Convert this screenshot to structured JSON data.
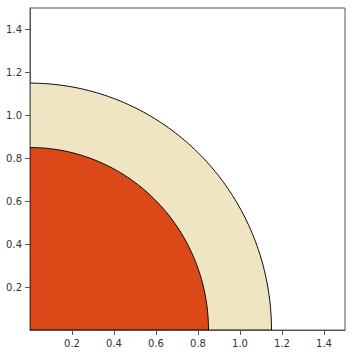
{
  "chart_data": {
    "type": "quarter_sphere",
    "series": [
      {
        "radius": 1.15,
        "color": "#efe4bf"
      },
      {
        "radius": 0.85,
        "color": "#d9400f"
      }
    ],
    "xlim": [
      0,
      1.5
    ],
    "ylim": [
      0,
      1.5
    ],
    "xticks": [
      0.2,
      0.4,
      0.6,
      0.8,
      {
        "value": 1,
        "label": "1.0"
      },
      1.2,
      1.4
    ],
    "yticks": [
      0.2,
      0.4,
      0.6,
      0.8,
      {
        "value": 1,
        "label": "1.0"
      },
      1.2,
      1.4
    ],
    "grid": false
  }
}
